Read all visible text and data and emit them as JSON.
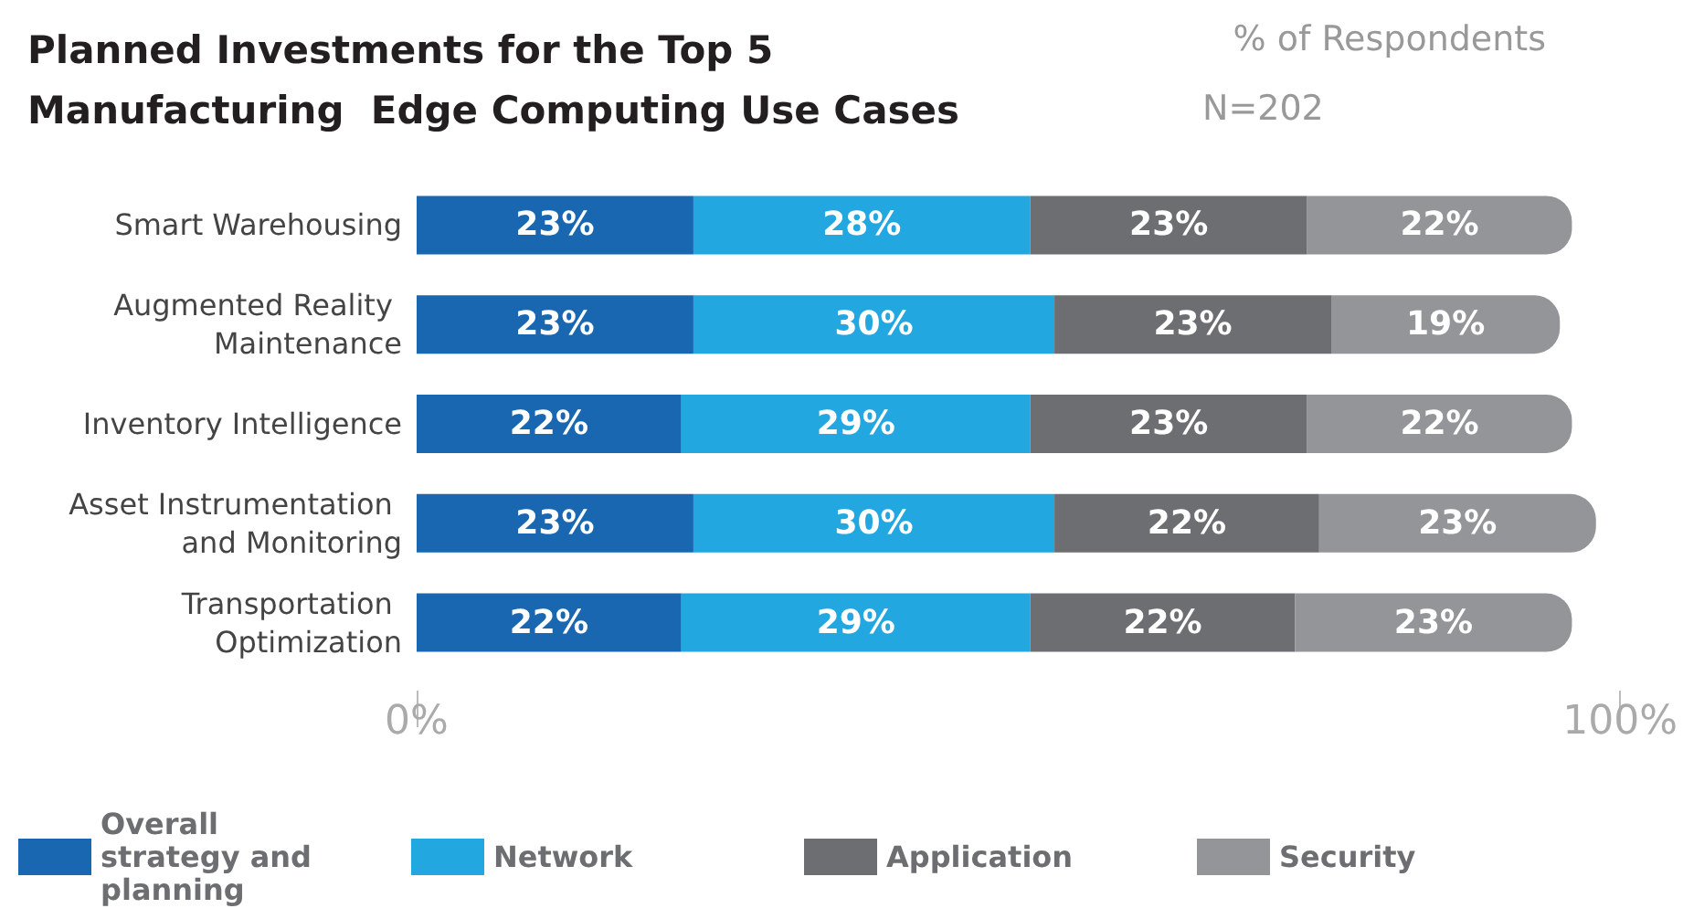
{
  "chart_data": {
    "type": "bar",
    "orientation": "horizontal",
    "stacked": true,
    "title": "Planned Investments for the Top 5 Manufacturing  Edge Computing Use Cases",
    "subtitle": "% of Respondents",
    "annotations": [
      "N=202"
    ],
    "categories": [
      "Smart Warehousing",
      "Augmented Reality Maintenance",
      "Inventory Intelligence",
      "Asset Instrumentation and Monitoring",
      "Transportation Optimization"
    ],
    "series": [
      {
        "name": "Overall strategy and planning",
        "color": "#1a67b1",
        "values": [
          23,
          23,
          22,
          23,
          22
        ],
        "value_labels": [
          "23%",
          "23%",
          "22%",
          "23%",
          "22%"
        ]
      },
      {
        "name": "Network",
        "color": "#22a7e0",
        "values": [
          28,
          30,
          29,
          30,
          29
        ],
        "value_labels": [
          "28%",
          "30%",
          "29%",
          "30%",
          "29%"
        ]
      },
      {
        "name": "Application",
        "color": "#6d6e71",
        "values": [
          23,
          23,
          23,
          22,
          22
        ],
        "value_labels": [
          "23%",
          "23%",
          "23%",
          "22%",
          "22%"
        ]
      },
      {
        "name": "Security",
        "color": "#939598",
        "values": [
          22,
          19,
          22,
          23,
          23
        ],
        "value_labels": [
          "22%",
          "19%",
          "22%",
          "23%",
          "23%"
        ]
      }
    ],
    "xlim": [
      0,
      100
    ],
    "xticks": [
      {
        "value": 0,
        "label": "0%"
      },
      {
        "value": 100,
        "label": "100%"
      }
    ],
    "grid": false,
    "legend": "bottom"
  }
}
